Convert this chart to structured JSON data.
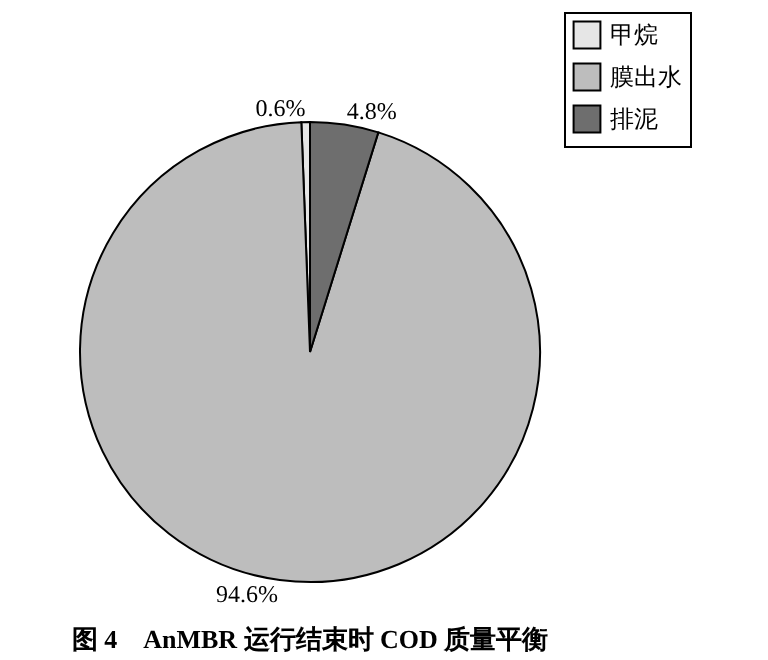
{
  "chart_data": {
    "type": "pie",
    "title": "图 4　AnMBR 运行结束时 COD 质量平衡",
    "categories": [
      "甲烷",
      "膜出水",
      "排泥"
    ],
    "values": [
      0.6,
      94.6,
      4.8
    ],
    "colors": [
      "#e6e6e6",
      "#bdbdbd",
      "#6e6e6e"
    ],
    "value_labels": [
      "0.6%",
      "94.6%",
      "4.8%"
    ],
    "legend": "top right"
  }
}
